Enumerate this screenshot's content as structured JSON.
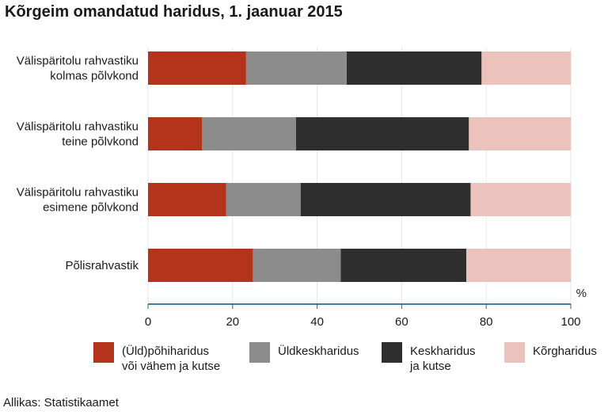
{
  "title": "Kõrgeim omandatud haridus, 1. jaanuar 2015",
  "source": "Allikas: Statistikaamet",
  "chart_data": {
    "type": "bar",
    "orientation": "horizontal",
    "stacked": true,
    "title": "Kõrgeim omandatud haridus, 1. jaanuar 2015",
    "xlabel": "%",
    "ylabel": "",
    "xlim": [
      0,
      100
    ],
    "x_ticks": [
      "0",
      "20",
      "40",
      "60",
      "80",
      "100"
    ],
    "unit_label": "%",
    "grid": "vertical",
    "legend_position": "bottom",
    "categories": [
      [
        "Välispäritolu rahvastiku",
        "kolmas põlvkond"
      ],
      [
        "Välispäritolu rahvastiku",
        "teine põlvkond"
      ],
      [
        "Välispäritolu rahvastiku",
        "esimene põlvkond"
      ],
      [
        "Põlisrahvastik"
      ]
    ],
    "series": [
      {
        "name": [
          "(Üld)põhiharidus",
          "või vähem ja kutse"
        ],
        "color": "#b4331b",
        "values": [
          23.2,
          12.8,
          18.5,
          24.8
        ]
      },
      {
        "name": [
          "Üldkeskharidus"
        ],
        "color": "#8c8c8c",
        "values": [
          23.8,
          22.2,
          17.6,
          20.8
        ]
      },
      {
        "name": [
          "Keskharidus",
          "ja kutse"
        ],
        "color": "#2e2e2e",
        "values": [
          31.9,
          40.9,
          40.2,
          29.7
        ]
      },
      {
        "name": [
          "Kõrgharidus"
        ],
        "color": "#ecc3bc",
        "values": [
          21.1,
          24.1,
          23.7,
          24.7
        ]
      }
    ]
  }
}
